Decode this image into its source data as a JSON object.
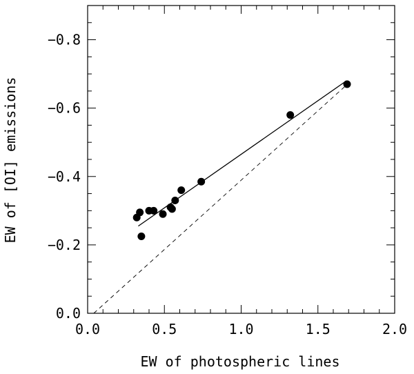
{
  "chart_data": {
    "type": "scatter",
    "title": "",
    "xlabel": "EW of photospheric lines",
    "ylabel": "EW of [OI] emissions",
    "xlim": [
      0.0,
      2.0
    ],
    "ylim": [
      0.0,
      -0.9
    ],
    "y_axis_inverted": true,
    "grid": false,
    "x_ticks": [
      0.0,
      0.5,
      1.0,
      1.5,
      2.0
    ],
    "x_tick_labels": [
      "0.0",
      "0.5",
      "1.0",
      "1.5",
      "2.0"
    ],
    "y_ticks": [
      0.0,
      -0.2,
      -0.4,
      -0.6,
      -0.8
    ],
    "y_tick_labels": [
      "0.0",
      "−0.2",
      "−0.4",
      "−0.6",
      "−0.8"
    ],
    "x_minor_step": 0.1,
    "y_minor_step": 0.05,
    "series": [
      {
        "kind": "points",
        "marker": "filled-circle",
        "color": "#000000",
        "x": [
          0.32,
          0.34,
          0.35,
          0.4,
          0.43,
          0.49,
          0.54,
          0.55,
          0.57,
          0.61,
          0.74,
          1.32,
          1.69
        ],
        "y": [
          -0.28,
          -0.295,
          -0.225,
          -0.3,
          -0.3,
          -0.29,
          -0.31,
          -0.305,
          -0.33,
          -0.36,
          -0.385,
          -0.58,
          -0.67
        ]
      },
      {
        "kind": "fit-line",
        "style": "solid",
        "color": "#000000",
        "x": [
          0.33,
          1.68
        ],
        "y": [
          -0.255,
          -0.678
        ]
      },
      {
        "kind": "reference-line",
        "style": "dashed",
        "color": "#000000",
        "x": [
          0.04,
          1.68
        ],
        "y": [
          0.0,
          -0.665
        ]
      }
    ]
  }
}
